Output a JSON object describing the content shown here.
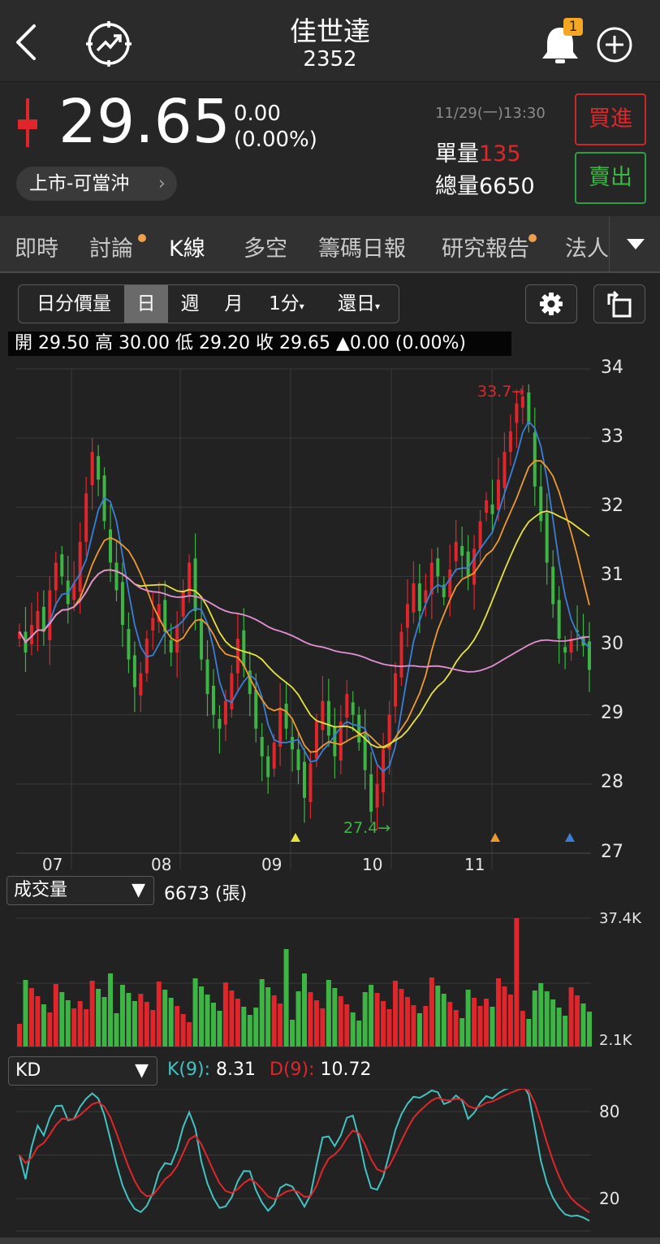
{
  "header": {
    "stock_name": "佳世達",
    "stock_code": "2352",
    "notification_count": "1"
  },
  "quote": {
    "price": "29.65",
    "change": "0.00",
    "change_pct": "(0.00%)",
    "market_tag": "上市-可當沖",
    "timestamp": "11/29(一)13:30",
    "unit_volume_label": "單量",
    "unit_volume": "135",
    "total_volume_label": "總量",
    "total_volume": "6650",
    "buy_label": "買進",
    "sell_label": "賣出"
  },
  "tabs": [
    {
      "label": "即時",
      "dot": false
    },
    {
      "label": "討論",
      "dot": true
    },
    {
      "label": "K線",
      "dot": false,
      "active": true
    },
    {
      "label": "多空",
      "dot": false
    },
    {
      "label": "籌碼日報",
      "dot": false
    },
    {
      "label": "研究報告",
      "dot": true
    },
    {
      "label": "法人",
      "dot": false
    }
  ],
  "toolbar": {
    "segments": [
      "日分價量",
      "日",
      "週",
      "月",
      "1分",
      "還日"
    ],
    "active_segment": "日"
  },
  "ohlc_bar": {
    "open_label": "開",
    "open": "29.50",
    "high_label": "高",
    "high": "30.00",
    "low_label": "低",
    "low": "29.20",
    "close_label": "收",
    "close": "29.65",
    "change": "▲0.00 (0.00%)"
  },
  "colors": {
    "up": "#e0262b",
    "down": "#3db544",
    "ma5": "#3a7fd5",
    "ma10": "#ee9a2e",
    "ma20": "#e8e33a",
    "ma60": "#e58fd3",
    "k_line": "#42c2c2",
    "d_line": "#e0262b",
    "background": "#222222"
  },
  "chart_data": [
    {
      "type": "candlestick",
      "title": "",
      "x_tick_labels": [
        "07",
        "08",
        "09",
        "10",
        "11"
      ],
      "y_tick_labels": [
        "34",
        "33",
        "32",
        "31",
        "30",
        "29",
        "28",
        "27"
      ],
      "ylim": [
        27,
        34
      ],
      "high_marker": "33.7→",
      "low_marker": "27.4→",
      "grid": true,
      "close": [
        30.2,
        29.9,
        30.3,
        30.5,
        30.2,
        30.8,
        31.2,
        31.0,
        30.6,
        30.9,
        31.5,
        32.2,
        32.8,
        32.4,
        31.8,
        31.2,
        30.8,
        30.3,
        29.8,
        29.4,
        29.6,
        30.1,
        30.4,
        30.6,
        30.2,
        29.9,
        30.3,
        30.8,
        31.2,
        30.5,
        29.8,
        29.3,
        29.0,
        28.8,
        29.2,
        29.6,
        30.1,
        29.7,
        29.3,
        28.8,
        28.4,
        28.1,
        28.6,
        29.1,
        28.8,
        28.5,
        28.2,
        27.8,
        28.3,
        28.9,
        29.2,
        28.7,
        28.4,
        28.9,
        29.3,
        29.0,
        28.6,
        28.2,
        27.6,
        28.0,
        28.5,
        29.0,
        29.6,
        30.2,
        30.6,
        30.9,
        30.5,
        30.8,
        31.2,
        31.0,
        30.7,
        31.1,
        31.5,
        31.3,
        31.0,
        31.4,
        31.8,
        32.1,
        31.9,
        32.4,
        32.8,
        33.1,
        33.5,
        33.6,
        33.2,
        32.3,
        31.8,
        31.2,
        30.6,
        30.1,
        29.9,
        30.1,
        30.2,
        30.0,
        29.65
      ],
      "volume": {
        "label": "成交量",
        "value": "6673 (張)",
        "ylim_labels": [
          "37.4K",
          "2.1K"
        ]
      },
      "kd": {
        "label": "KD",
        "k_label": "K(9):",
        "k_value": "8.31",
        "d_label": "D(9):",
        "d_value": "10.72",
        "y_tick_labels": [
          "80",
          "20"
        ]
      }
    }
  ]
}
